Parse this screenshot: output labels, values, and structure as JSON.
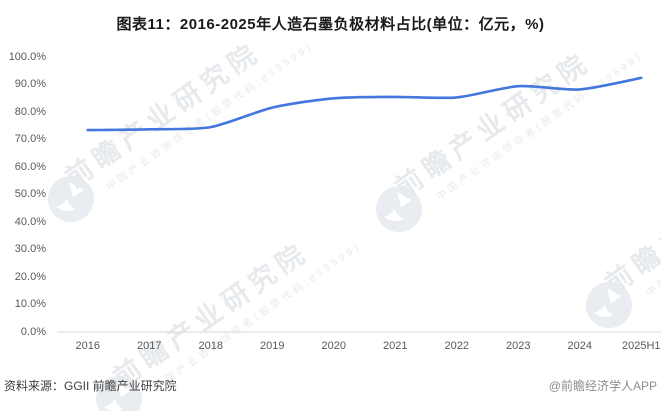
{
  "title": "图表11：2016-2025年人造石墨负极材料占比(单位：亿元，%)",
  "footer": {
    "source": "资料来源：GGII 前瞻产业研究院",
    "credit": "@前瞻经济学人APP"
  },
  "watermark": {
    "main": "前瞻产业研究院",
    "sub": "中国产业咨询领导者(股票代码:839599)"
  },
  "colors": {
    "line": "#4377DD",
    "axis_line": "#D9D9D9",
    "axis_label": "#595959",
    "title_text": "#1A1A1A",
    "watermark": "#E7EAED"
  },
  "chart_data": {
    "type": "line",
    "title": "图表11：2016-2025年人造石墨负极材料占比(单位：亿元，%)",
    "categories": [
      "2016",
      "2017",
      "2018",
      "2019",
      "2020",
      "2021",
      "2022",
      "2023",
      "2024",
      "2025H1"
    ],
    "series": [
      {
        "name": "人造石墨负极材料占比",
        "values": [
          73.4,
          73.7,
          74.5,
          81.6,
          85.0,
          85.5,
          85.3,
          89.4,
          88.2,
          92.4
        ]
      }
    ],
    "xlabel": "",
    "ylabel": "",
    "ylim": [
      0,
      100
    ],
    "y_ticks": [
      "0.0%",
      "10.0%",
      "20.0%",
      "30.0%",
      "40.0%",
      "50.0%",
      "60.0%",
      "70.0%",
      "80.0%",
      "90.0%",
      "100.0%"
    ],
    "grid": false,
    "legend": false,
    "line_color": "#4377DD"
  }
}
